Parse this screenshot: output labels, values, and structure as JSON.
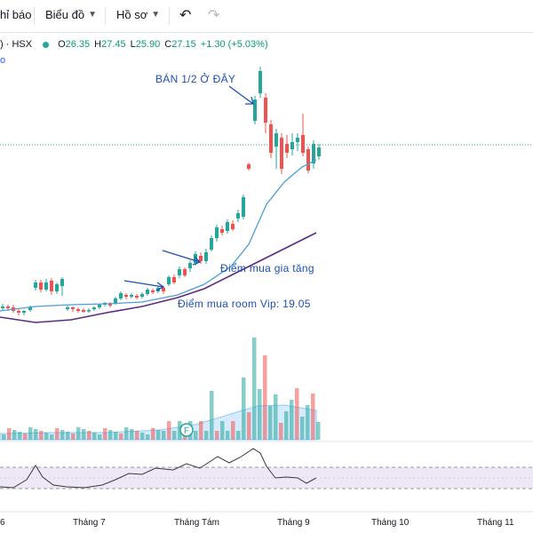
{
  "toolbar": {
    "indicators_label": "hỉ báo",
    "chart_label": "Biểu đồ",
    "profile_label": "Hồ sơ"
  },
  "legend": {
    "symbol": ") · HSX",
    "open_label": "O",
    "open": "26.35",
    "high_label": "H",
    "high": "27.45",
    "low_label": "L",
    "low": "25.90",
    "close_label": "C",
    "close": "27.15",
    "change": "+1.30 (+5.03%)"
  },
  "sub_legend": "o",
  "annotations": {
    "sell_half": "BÁN 1/2 Ở ĐÂY",
    "add_buy": "Điểm mua gia tăng",
    "vip_buy": "Điểm mua room Vip: 19.05"
  },
  "volume_marker": "F",
  "x_axis": {
    "labels": [
      "6",
      "Tháng 7",
      "Tháng Tám",
      "Tháng 9",
      "Tháng 10",
      "Tháng 11"
    ]
  },
  "colors": {
    "up": "#26a69a",
    "down": "#ef5350",
    "ma_fast": "#4a9fd6",
    "ma_slow": "#5b2a86",
    "annotation": "#1e4fb5",
    "rsi_band": "#ede7f6"
  },
  "icons": {
    "undo": "undo-icon",
    "redo": "redo-icon"
  }
}
